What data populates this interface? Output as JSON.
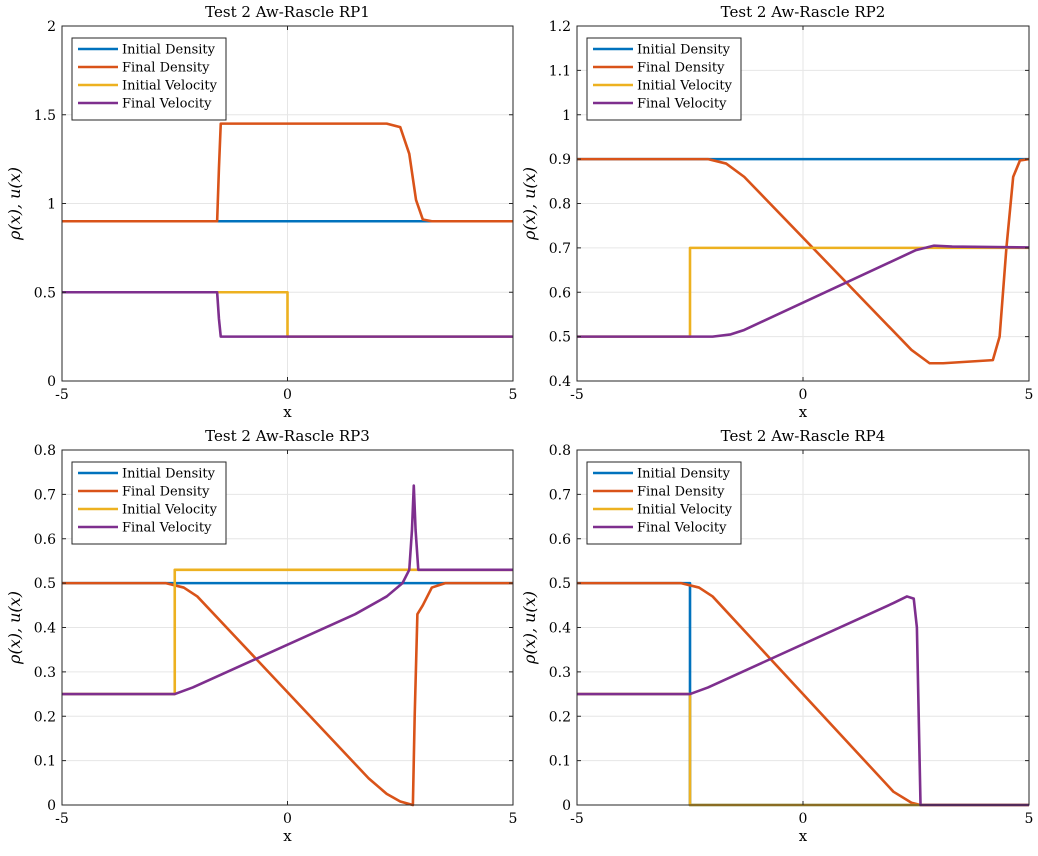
{
  "chart_data": [
    {
      "type": "line",
      "title": "Test 2 Aw-Rascle RP1",
      "xlabel": "x",
      "ylabel": "ρ(x), u(x)",
      "xlim": [
        -5,
        5
      ],
      "ylim": [
        0,
        2
      ],
      "xticks": [
        -5,
        0,
        5
      ],
      "yticks": [
        0,
        0.5,
        1,
        1.5,
        2
      ],
      "ytick_labels": [
        "0",
        "0.5",
        "1",
        "1.5",
        "2"
      ],
      "grid": true,
      "legend_position": "top-left",
      "series": [
        {
          "name": "Initial Density",
          "color": "#0072BD",
          "points": [
            [
              -5,
              0.9
            ],
            [
              5,
              0.9
            ]
          ]
        },
        {
          "name": "Final Density",
          "color": "#D95319",
          "points": [
            [
              -5,
              0.9
            ],
            [
              -1.56,
              0.9
            ],
            [
              -1.52,
              1.2
            ],
            [
              -1.48,
              1.45
            ],
            [
              2.2,
              1.45
            ],
            [
              2.5,
              1.43
            ],
            [
              2.7,
              1.28
            ],
            [
              2.85,
              1.02
            ],
            [
              3.0,
              0.91
            ],
            [
              3.2,
              0.9
            ],
            [
              5,
              0.9
            ]
          ]
        },
        {
          "name": "Initial Velocity",
          "color": "#EDB120",
          "points": [
            [
              -5,
              0.5
            ],
            [
              0,
              0.5
            ],
            [
              0,
              0.25
            ],
            [
              5,
              0.25
            ]
          ]
        },
        {
          "name": "Final Velocity",
          "color": "#7E2F8E",
          "points": [
            [
              -5,
              0.5
            ],
            [
              -1.56,
              0.5
            ],
            [
              -1.52,
              0.35
            ],
            [
              -1.48,
              0.25
            ],
            [
              5,
              0.25
            ]
          ]
        }
      ]
    },
    {
      "type": "line",
      "title": "Test 2 Aw-Rascle RP2",
      "xlabel": "x",
      "ylabel": "ρ(x), u(x)",
      "xlim": [
        -5,
        5
      ],
      "ylim": [
        0.4,
        1.2
      ],
      "xticks": [
        -5,
        0,
        5
      ],
      "yticks": [
        0.4,
        0.5,
        0.6,
        0.7,
        0.8,
        0.9,
        1,
        1.1,
        1.2
      ],
      "ytick_labels": [
        "0.4",
        "0.5",
        "0.6",
        "0.7",
        "0.8",
        "0.9",
        "1",
        "1.1",
        "1.2"
      ],
      "grid": true,
      "legend_position": "top-left",
      "series": [
        {
          "name": "Initial Density",
          "color": "#0072BD",
          "points": [
            [
              -5,
              0.9
            ],
            [
              5,
              0.9
            ]
          ]
        },
        {
          "name": "Final Density",
          "color": "#D95319",
          "points": [
            [
              -5,
              0.9
            ],
            [
              -2.1,
              0.9
            ],
            [
              -1.7,
              0.89
            ],
            [
              -1.3,
              0.86
            ],
            [
              2.4,
              0.47
            ],
            [
              2.8,
              0.44
            ],
            [
              3.1,
              0.44
            ],
            [
              4.2,
              0.447
            ],
            [
              4.35,
              0.5
            ],
            [
              4.5,
              0.7
            ],
            [
              4.65,
              0.86
            ],
            [
              4.8,
              0.897
            ],
            [
              5,
              0.9
            ]
          ]
        },
        {
          "name": "Initial Velocity",
          "color": "#EDB120",
          "points": [
            [
              -5,
              0.5
            ],
            [
              -2.5,
              0.5
            ],
            [
              -2.5,
              0.7
            ],
            [
              5,
              0.7
            ]
          ]
        },
        {
          "name": "Final Velocity",
          "color": "#7E2F8E",
          "points": [
            [
              -5,
              0.5
            ],
            [
              -2.0,
              0.5
            ],
            [
              -1.6,
              0.505
            ],
            [
              -1.3,
              0.515
            ],
            [
              2.5,
              0.695
            ],
            [
              2.9,
              0.705
            ],
            [
              3.3,
              0.703
            ],
            [
              5,
              0.701
            ]
          ]
        }
      ]
    },
    {
      "type": "line",
      "title": "Test 2 Aw-Rascle RP3",
      "xlabel": "x",
      "ylabel": "ρ(x), u(x)",
      "xlim": [
        -5,
        5
      ],
      "ylim": [
        0,
        0.8
      ],
      "xticks": [
        -5,
        0,
        5
      ],
      "yticks": [
        0,
        0.1,
        0.2,
        0.3,
        0.4,
        0.5,
        0.6,
        0.7,
        0.8
      ],
      "ytick_labels": [
        "0",
        "0.1",
        "0.2",
        "0.3",
        "0.4",
        "0.5",
        "0.6",
        "0.7",
        "0.8"
      ],
      "grid": true,
      "legend_position": "top-left",
      "series": [
        {
          "name": "Initial Density",
          "color": "#0072BD",
          "points": [
            [
              -5,
              0.5
            ],
            [
              5,
              0.5
            ]
          ]
        },
        {
          "name": "Final Density",
          "color": "#D95319",
          "points": [
            [
              -5,
              0.5
            ],
            [
              -2.7,
              0.5
            ],
            [
              -2.3,
              0.49
            ],
            [
              -2.0,
              0.47
            ],
            [
              1.8,
              0.06
            ],
            [
              2.2,
              0.025
            ],
            [
              2.5,
              0.008
            ],
            [
              2.78,
              0.0
            ],
            [
              2.82,
              0.2
            ],
            [
              2.88,
              0.43
            ],
            [
              3.0,
              0.45
            ],
            [
              3.2,
              0.49
            ],
            [
              3.5,
              0.5
            ],
            [
              5,
              0.5
            ]
          ]
        },
        {
          "name": "Initial Velocity",
          "color": "#EDB120",
          "points": [
            [
              -5,
              0.25
            ],
            [
              -2.5,
              0.25
            ],
            [
              -2.5,
              0.53
            ],
            [
              5,
              0.53
            ]
          ]
        },
        {
          "name": "Final Velocity",
          "color": "#7E2F8E",
          "points": [
            [
              -5,
              0.25
            ],
            [
              -2.5,
              0.25
            ],
            [
              -2.1,
              0.265
            ],
            [
              1.5,
              0.43
            ],
            [
              2.2,
              0.47
            ],
            [
              2.55,
              0.5
            ],
            [
              2.7,
              0.53
            ],
            [
              2.76,
              0.62
            ],
            [
              2.8,
              0.72
            ],
            [
              2.84,
              0.62
            ],
            [
              2.9,
              0.53
            ],
            [
              5,
              0.53
            ]
          ]
        }
      ]
    },
    {
      "type": "line",
      "title": "Test 2 Aw-Rascle RP4",
      "xlabel": "x",
      "ylabel": "ρ(x), u(x)",
      "xlim": [
        -5,
        5
      ],
      "ylim": [
        0,
        0.8
      ],
      "xticks": [
        -5,
        0,
        5
      ],
      "yticks": [
        0,
        0.1,
        0.2,
        0.3,
        0.4,
        0.5,
        0.6,
        0.7,
        0.8
      ],
      "ytick_labels": [
        "0",
        "0.1",
        "0.2",
        "0.3",
        "0.4",
        "0.5",
        "0.6",
        "0.7",
        "0.8"
      ],
      "grid": true,
      "legend_position": "top-left",
      "series": [
        {
          "name": "Initial Density",
          "color": "#0072BD",
          "points": [
            [
              -5,
              0.5
            ],
            [
              -2.5,
              0.5
            ],
            [
              -2.5,
              0.0
            ],
            [
              5,
              0.0
            ]
          ]
        },
        {
          "name": "Final Density",
          "color": "#D95319",
          "points": [
            [
              -5,
              0.5
            ],
            [
              -2.7,
              0.5
            ],
            [
              -2.3,
              0.49
            ],
            [
              -2.0,
              0.47
            ],
            [
              2.0,
              0.03
            ],
            [
              2.4,
              0.005
            ],
            [
              2.6,
              0.0
            ],
            [
              5,
              0.0
            ]
          ]
        },
        {
          "name": "Initial Velocity",
          "color": "#EDB120",
          "points": [
            [
              -5,
              0.25
            ],
            [
              -2.5,
              0.25
            ],
            [
              -2.5,
              0.0
            ],
            [
              5,
              0.0
            ]
          ]
        },
        {
          "name": "Final Velocity",
          "color": "#7E2F8E",
          "points": [
            [
              -5,
              0.25
            ],
            [
              -2.5,
              0.25
            ],
            [
              -2.1,
              0.265
            ],
            [
              2.0,
              0.455
            ],
            [
              2.3,
              0.47
            ],
            [
              2.45,
              0.465
            ],
            [
              2.52,
              0.4
            ],
            [
              2.56,
              0.2
            ],
            [
              2.6,
              0.0
            ],
            [
              5,
              0.0
            ]
          ]
        }
      ]
    }
  ]
}
